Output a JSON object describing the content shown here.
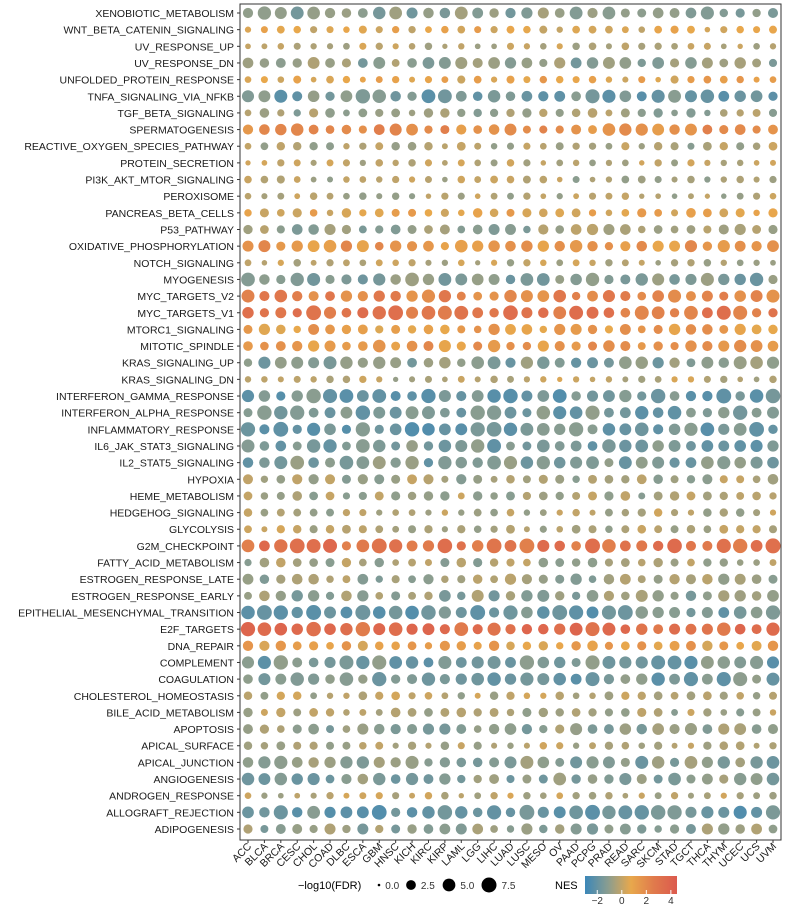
{
  "chart_data": {
    "type": "dotplot",
    "title": "",
    "xlabel": "",
    "ylabel": "",
    "x_categories": [
      "ACC",
      "BLCA",
      "BRCA",
      "CESC",
      "CHOL",
      "COAD",
      "DLBC",
      "ESCA",
      "GBM",
      "HNSC",
      "KICH",
      "KIRC",
      "KIRP",
      "LAML",
      "LGG",
      "LIHC",
      "LUAD",
      "LUSC",
      "MESO",
      "OV",
      "PAAD",
      "PCPG",
      "PRAD",
      "READ",
      "SARC",
      "SKCM",
      "STAD",
      "TGCT",
      "THCA",
      "THYM",
      "UCEC",
      "UCS",
      "UVM"
    ],
    "y_categories": [
      "XENOBIOTIC_METABOLISM",
      "WNT_BETA_CATENIN_SIGNALING",
      "UV_RESPONSE_UP",
      "UV_RESPONSE_DN",
      "UNFOLDED_PROTEIN_RESPONSE",
      "TNFA_SIGNALING_VIA_NFKB",
      "TGF_BETA_SIGNALING",
      "SPERMATOGENESIS",
      "REACTIVE_OXYGEN_SPECIES_PATHWAY",
      "PROTEIN_SECRETION",
      "PI3K_AKT_MTOR_SIGNALING",
      "PEROXISOME",
      "PANCREAS_BETA_CELLS",
      "P53_PATHWAY",
      "OXIDATIVE_PHOSPHORYLATION",
      "NOTCH_SIGNALING",
      "MYOGENESIS",
      "MYC_TARGETS_V2",
      "MYC_TARGETS_V1",
      "MTORC1_SIGNALING",
      "MITOTIC_SPINDLE",
      "KRAS_SIGNALING_UP",
      "KRAS_SIGNALING_DN",
      "INTERFERON_GAMMA_RESPONSE",
      "INTERFERON_ALPHA_RESPONSE",
      "INFLAMMATORY_RESPONSE",
      "IL6_JAK_STAT3_SIGNALING",
      "IL2_STAT5_SIGNALING",
      "HYPOXIA",
      "HEME_METABOLISM",
      "HEDGEHOG_SIGNALING",
      "GLYCOLYSIS",
      "G2M_CHECKPOINT",
      "FATTY_ACID_METABOLISM",
      "ESTROGEN_RESPONSE_LATE",
      "ESTROGEN_RESPONSE_EARLY",
      "EPITHELIAL_MESENCHYMAL_TRANSITION",
      "E2F_TARGETS",
      "DNA_REPAIR",
      "COMPLEMENT",
      "COAGULATION",
      "CHOLESTEROL_HOMEOSTASIS",
      "BILE_ACID_METABOLISM",
      "APOPTOSIS",
      "APICAL_SURFACE",
      "APICAL_JUNCTION",
      "ANGIOGENESIS",
      "ANDROGEN_RESPONSE",
      "ALLOGRAFT_REJECTION",
      "ADIPOGENESIS"
    ],
    "values_note": "NES = color, -log10(FDR) = size",
    "row_profiles": {
      "XENOBIOTIC_METABOLISM": [
        -1.2,
        4.5
      ],
      "WNT_BETA_CATENIN_SIGNALING": [
        0.6,
        1.2
      ],
      "UV_RESPONSE_UP": [
        -0.2,
        1.0
      ],
      "UV_RESPONSE_DN": [
        -1.0,
        3.5
      ],
      "UNFOLDED_PROTEIN_RESPONSE": [
        0.8,
        1.2
      ],
      "TNFA_SIGNALING_VIA_NFKB": [
        -1.6,
        5.5
      ],
      "TGF_BETA_SIGNALING": [
        -0.8,
        2.0
      ],
      "SPERMATOGENESIS": [
        1.8,
        4.0
      ],
      "REACTIVE_OXYGEN_SPECIES_PATHWAY": [
        -0.5,
        1.5
      ],
      "PROTEIN_SECRETION": [
        -0.3,
        1.0
      ],
      "PI3K_AKT_MTOR_SIGNALING": [
        -0.4,
        1.2
      ],
      "PEROXISOME": [
        -0.3,
        1.0
      ],
      "PANCREAS_BETA_CELLS": [
        0.7,
        2.0
      ],
      "P53_PATHWAY": [
        -0.8,
        3.0
      ],
      "OXIDATIVE_PHOSPHORYLATION": [
        1.5,
        4.0
      ],
      "NOTCH_SIGNALING": [
        -0.2,
        1.0
      ],
      "MYOGENESIS": [
        -1.4,
        5.0
      ],
      "MYC_TARGETS_V2": [
        2.2,
        4.5
      ],
      "MYC_TARGETS_V1": [
        2.8,
        6.0
      ],
      "MTORC1_SIGNALING": [
        1.2,
        3.0
      ],
      "MITOTIC_SPINDLE": [
        1.4,
        4.0
      ],
      "KRAS_SIGNALING_UP": [
        -1.3,
        4.5
      ],
      "KRAS_SIGNALING_DN": [
        -0.2,
        1.0
      ],
      "INTERFERON_GAMMA_RESPONSE": [
        -1.8,
        6.0
      ],
      "INTERFERON_ALPHA_RESPONSE": [
        -1.6,
        5.5
      ],
      "INFLAMMATORY_RESPONSE": [
        -1.8,
        6.0
      ],
      "IL6_JAK_STAT3_SIGNALING": [
        -1.5,
        5.0
      ],
      "IL2_STAT5_SIGNALING": [
        -1.4,
        5.0
      ],
      "HYPOXIA": [
        -0.6,
        2.5
      ],
      "HEME_METABOLISM": [
        -0.5,
        2.0
      ],
      "HEDGEHOG_SIGNALING": [
        -0.4,
        1.5
      ],
      "GLYCOLYSIS": [
        -0.3,
        1.5
      ],
      "G2M_CHECKPOINT": [
        3.0,
        6.0
      ],
      "FATTY_ACID_METABOLISM": [
        -0.6,
        2.0
      ],
      "ESTROGEN_RESPONSE_LATE": [
        -0.8,
        3.0
      ],
      "ESTROGEN_RESPONSE_EARLY": [
        -1.0,
        3.5
      ],
      "EPITHELIAL_MESENCHYMAL_TRANSITION": [
        -1.8,
        6.0
      ],
      "E2F_TARGETS": [
        3.2,
        6.0
      ],
      "DNA_REPAIR": [
        1.0,
        2.5
      ],
      "COMPLEMENT": [
        -1.6,
        5.5
      ],
      "COAGULATION": [
        -1.6,
        5.5
      ],
      "CHOLESTEROL_HOMEOSTASIS": [
        -0.3,
        1.5
      ],
      "BILE_ACID_METABOLISM": [
        -0.5,
        2.0
      ],
      "APOPTOSIS": [
        -1.0,
        3.5
      ],
      "APICAL_SURFACE": [
        -0.4,
        1.5
      ],
      "APICAL_JUNCTION": [
        -1.2,
        4.5
      ],
      "ANGIOGENESIS": [
        -1.2,
        4.0
      ],
      "ANDROGEN_RESPONSE": [
        -0.2,
        1.0
      ],
      "ALLOGRAFT_REJECTION": [
        -1.8,
        6.0
      ],
      "ADIPOGENESIS": [
        -1.0,
        3.0
      ]
    },
    "size_legend": {
      "title": "−log10(FDR)",
      "breaks": [
        0.0,
        2.5,
        5.0,
        7.5
      ],
      "labels": [
        "0.0",
        "2.5",
        "5.0",
        "7.5"
      ]
    },
    "color_legend": {
      "title": "NES",
      "breaks": [
        -2,
        0,
        2,
        4
      ],
      "labels": [
        "−2",
        "0",
        "2",
        "4"
      ],
      "range": [
        -3,
        4.5
      ],
      "colors": [
        "#3b87b8",
        "#8a9d90",
        "#e8a84c",
        "#e07a4c",
        "#dc5a4e"
      ]
    },
    "legend_placement": "bottom",
    "grid": false
  }
}
